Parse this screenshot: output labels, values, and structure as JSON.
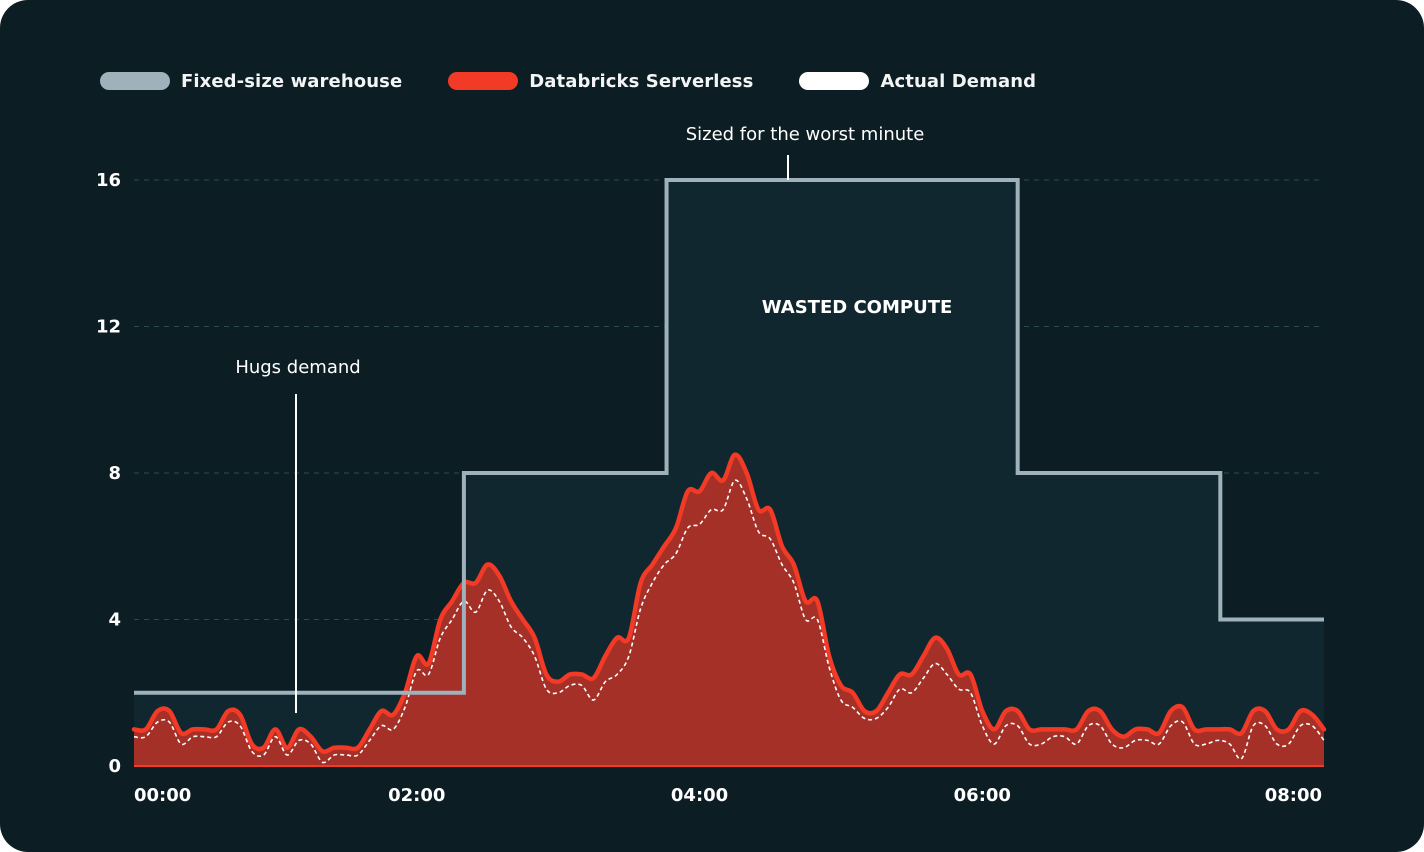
{
  "colors": {
    "background": "#0c1e24",
    "fixed": "#9fb2bb",
    "fixed_fill": "#11272f",
    "serverless": "#f23a26",
    "serverless_fill": "#a53027",
    "demand": "#ffffff",
    "grid": "#2d4a52"
  },
  "legend": [
    {
      "label": "Fixed-size warehouse",
      "color": "#9fb2bb"
    },
    {
      "label": "Databricks Serverless",
      "color": "#f23a26"
    },
    {
      "label": "Actual Demand",
      "color": "#ffffff"
    }
  ],
  "annotations": {
    "worst_minute": "Sized for the worst minute",
    "wasted": "WASTED COMPUTE",
    "hugs": "Hugs demand"
  },
  "chart_data": {
    "type": "area",
    "x_range": [
      "00:00",
      "08:25"
    ],
    "ylim": [
      0,
      16
    ],
    "grid": true,
    "y_ticks": [
      0,
      4,
      8,
      12,
      16
    ],
    "x_ticks": [
      "00:00",
      "02:00",
      "04:00",
      "06:00",
      "08:00"
    ],
    "legend_position": "top-left",
    "series": [
      {
        "name": "Fixed-size warehouse",
        "style": "step",
        "points": [
          {
            "x": "00:00",
            "y": 2
          },
          {
            "x": "02:20",
            "y": 8
          },
          {
            "x": "03:46",
            "y": 16
          },
          {
            "x": "06:15",
            "y": 8
          },
          {
            "x": "07:41",
            "y": 4
          },
          {
            "x": "08:25",
            "y": 4
          }
        ]
      },
      {
        "name": "Databricks Serverless",
        "style": "area",
        "points": [
          {
            "x": "00:00",
            "y": 1.0
          },
          {
            "x": "00:05",
            "y": 1.0
          },
          {
            "x": "00:10",
            "y": 1.5
          },
          {
            "x": "00:15",
            "y": 1.5
          },
          {
            "x": "00:20",
            "y": 0.9
          },
          {
            "x": "00:25",
            "y": 1.0
          },
          {
            "x": "00:30",
            "y": 1.0
          },
          {
            "x": "00:35",
            "y": 1.0
          },
          {
            "x": "00:40",
            "y": 1.5
          },
          {
            "x": "00:45",
            "y": 1.4
          },
          {
            "x": "00:50",
            "y": 0.6
          },
          {
            "x": "00:55",
            "y": 0.5
          },
          {
            "x": "01:00",
            "y": 1.0
          },
          {
            "x": "01:05",
            "y": 0.5
          },
          {
            "x": "01:10",
            "y": 1.0
          },
          {
            "x": "01:15",
            "y": 0.8
          },
          {
            "x": "01:20",
            "y": 0.4
          },
          {
            "x": "01:25",
            "y": 0.5
          },
          {
            "x": "01:30",
            "y": 0.5
          },
          {
            "x": "01:35",
            "y": 0.5
          },
          {
            "x": "01:40",
            "y": 1.0
          },
          {
            "x": "01:45",
            "y": 1.5
          },
          {
            "x": "01:50",
            "y": 1.4
          },
          {
            "x": "01:55",
            "y": 2.0
          },
          {
            "x": "02:00",
            "y": 3.0
          },
          {
            "x": "02:05",
            "y": 2.8
          },
          {
            "x": "02:10",
            "y": 4.0
          },
          {
            "x": "02:15",
            "y": 4.5
          },
          {
            "x": "02:20",
            "y": 5.0
          },
          {
            "x": "02:25",
            "y": 5.0
          },
          {
            "x": "02:30",
            "y": 5.5
          },
          {
            "x": "02:35",
            "y": 5.2
          },
          {
            "x": "02:40",
            "y": 4.5
          },
          {
            "x": "02:45",
            "y": 4.0
          },
          {
            "x": "02:50",
            "y": 3.5
          },
          {
            "x": "02:55",
            "y": 2.5
          },
          {
            "x": "03:00",
            "y": 2.3
          },
          {
            "x": "03:05",
            "y": 2.5
          },
          {
            "x": "03:10",
            "y": 2.5
          },
          {
            "x": "03:15",
            "y": 2.4
          },
          {
            "x": "03:20",
            "y": 3.0
          },
          {
            "x": "03:25",
            "y": 3.5
          },
          {
            "x": "03:30",
            "y": 3.5
          },
          {
            "x": "03:35",
            "y": 5.0
          },
          {
            "x": "03:40",
            "y": 5.5
          },
          {
            "x": "03:45",
            "y": 6.0
          },
          {
            "x": "03:50",
            "y": 6.5
          },
          {
            "x": "03:55",
            "y": 7.5
          },
          {
            "x": "04:00",
            "y": 7.5
          },
          {
            "x": "04:05",
            "y": 8.0
          },
          {
            "x": "04:10",
            "y": 7.8
          },
          {
            "x": "04:15",
            "y": 8.5
          },
          {
            "x": "04:20",
            "y": 8.0
          },
          {
            "x": "04:25",
            "y": 7.0
          },
          {
            "x": "04:30",
            "y": 7.0
          },
          {
            "x": "04:35",
            "y": 6.0
          },
          {
            "x": "04:40",
            "y": 5.5
          },
          {
            "x": "04:45",
            "y": 4.5
          },
          {
            "x": "04:50",
            "y": 4.5
          },
          {
            "x": "04:55",
            "y": 3.0
          },
          {
            "x": "05:00",
            "y": 2.2
          },
          {
            "x": "05:05",
            "y": 2.0
          },
          {
            "x": "05:10",
            "y": 1.5
          },
          {
            "x": "05:15",
            "y": 1.5
          },
          {
            "x": "05:20",
            "y": 2.0
          },
          {
            "x": "05:25",
            "y": 2.5
          },
          {
            "x": "05:30",
            "y": 2.5
          },
          {
            "x": "05:35",
            "y": 3.0
          },
          {
            "x": "05:40",
            "y": 3.5
          },
          {
            "x": "05:45",
            "y": 3.2
          },
          {
            "x": "05:50",
            "y": 2.5
          },
          {
            "x": "05:55",
            "y": 2.5
          },
          {
            "x": "06:00",
            "y": 1.5
          },
          {
            "x": "06:05",
            "y": 1.0
          },
          {
            "x": "06:10",
            "y": 1.5
          },
          {
            "x": "06:15",
            "y": 1.5
          },
          {
            "x": "06:20",
            "y": 1.0
          },
          {
            "x": "06:25",
            "y": 1.0
          },
          {
            "x": "06:30",
            "y": 1.0
          },
          {
            "x": "06:35",
            "y": 1.0
          },
          {
            "x": "06:40",
            "y": 1.0
          },
          {
            "x": "06:45",
            "y": 1.5
          },
          {
            "x": "06:50",
            "y": 1.5
          },
          {
            "x": "06:55",
            "y": 1.0
          },
          {
            "x": "07:00",
            "y": 0.8
          },
          {
            "x": "07:05",
            "y": 1.0
          },
          {
            "x": "07:10",
            "y": 1.0
          },
          {
            "x": "07:15",
            "y": 0.9
          },
          {
            "x": "07:20",
            "y": 1.5
          },
          {
            "x": "07:25",
            "y": 1.6
          },
          {
            "x": "07:30",
            "y": 1.0
          },
          {
            "x": "07:35",
            "y": 1.0
          },
          {
            "x": "07:40",
            "y": 1.0
          },
          {
            "x": "07:45",
            "y": 1.0
          },
          {
            "x": "07:50",
            "y": 0.9
          },
          {
            "x": "07:55",
            "y": 1.5
          },
          {
            "x": "08:00",
            "y": 1.5
          },
          {
            "x": "08:05",
            "y": 1.0
          },
          {
            "x": "08:10",
            "y": 1.0
          },
          {
            "x": "08:15",
            "y": 1.5
          },
          {
            "x": "08:20",
            "y": 1.4
          },
          {
            "x": "08:25",
            "y": 1.0
          }
        ]
      },
      {
        "name": "Actual Demand",
        "style": "dashed",
        "points": [
          {
            "x": "00:00",
            "y": 0.8
          },
          {
            "x": "00:05",
            "y": 0.8
          },
          {
            "x": "00:10",
            "y": 1.2
          },
          {
            "x": "00:15",
            "y": 1.2
          },
          {
            "x": "00:20",
            "y": 0.6
          },
          {
            "x": "00:25",
            "y": 0.8
          },
          {
            "x": "00:30",
            "y": 0.8
          },
          {
            "x": "00:35",
            "y": 0.8
          },
          {
            "x": "00:40",
            "y": 1.2
          },
          {
            "x": "00:45",
            "y": 1.1
          },
          {
            "x": "00:50",
            "y": 0.4
          },
          {
            "x": "00:55",
            "y": 0.3
          },
          {
            "x": "01:00",
            "y": 0.8
          },
          {
            "x": "01:05",
            "y": 0.3
          },
          {
            "x": "01:10",
            "y": 0.7
          },
          {
            "x": "01:15",
            "y": 0.6
          },
          {
            "x": "01:20",
            "y": 0.1
          },
          {
            "x": "01:25",
            "y": 0.3
          },
          {
            "x": "01:30",
            "y": 0.3
          },
          {
            "x": "01:35",
            "y": 0.3
          },
          {
            "x": "01:40",
            "y": 0.7
          },
          {
            "x": "01:45",
            "y": 1.1
          },
          {
            "x": "01:50",
            "y": 1.0
          },
          {
            "x": "01:55",
            "y": 1.6
          },
          {
            "x": "02:00",
            "y": 2.6
          },
          {
            "x": "02:05",
            "y": 2.5
          },
          {
            "x": "02:10",
            "y": 3.5
          },
          {
            "x": "02:15",
            "y": 4.0
          },
          {
            "x": "02:20",
            "y": 4.5
          },
          {
            "x": "02:25",
            "y": 4.2
          },
          {
            "x": "02:30",
            "y": 4.8
          },
          {
            "x": "02:35",
            "y": 4.5
          },
          {
            "x": "02:40",
            "y": 3.8
          },
          {
            "x": "02:45",
            "y": 3.5
          },
          {
            "x": "02:50",
            "y": 3.0
          },
          {
            "x": "02:55",
            "y": 2.1
          },
          {
            "x": "03:00",
            "y": 2.0
          },
          {
            "x": "03:05",
            "y": 2.2
          },
          {
            "x": "03:10",
            "y": 2.2
          },
          {
            "x": "03:15",
            "y": 1.8
          },
          {
            "x": "03:20",
            "y": 2.3
          },
          {
            "x": "03:25",
            "y": 2.5
          },
          {
            "x": "03:30",
            "y": 3.0
          },
          {
            "x": "03:35",
            "y": 4.3
          },
          {
            "x": "03:40",
            "y": 5.0
          },
          {
            "x": "03:45",
            "y": 5.5
          },
          {
            "x": "03:50",
            "y": 5.8
          },
          {
            "x": "03:55",
            "y": 6.5
          },
          {
            "x": "04:00",
            "y": 6.6
          },
          {
            "x": "04:05",
            "y": 7.0
          },
          {
            "x": "04:10",
            "y": 7.0
          },
          {
            "x": "04:15",
            "y": 7.8
          },
          {
            "x": "04:20",
            "y": 7.3
          },
          {
            "x": "04:25",
            "y": 6.4
          },
          {
            "x": "04:30",
            "y": 6.2
          },
          {
            "x": "04:35",
            "y": 5.5
          },
          {
            "x": "04:40",
            "y": 5.0
          },
          {
            "x": "04:45",
            "y": 4.0
          },
          {
            "x": "04:50",
            "y": 4.0
          },
          {
            "x": "04:55",
            "y": 2.7
          },
          {
            "x": "05:00",
            "y": 1.8
          },
          {
            "x": "05:05",
            "y": 1.6
          },
          {
            "x": "05:10",
            "y": 1.3
          },
          {
            "x": "05:15",
            "y": 1.3
          },
          {
            "x": "05:20",
            "y": 1.6
          },
          {
            "x": "05:25",
            "y": 2.1
          },
          {
            "x": "05:30",
            "y": 2.0
          },
          {
            "x": "05:35",
            "y": 2.4
          },
          {
            "x": "05:40",
            "y": 2.8
          },
          {
            "x": "05:45",
            "y": 2.5
          },
          {
            "x": "05:50",
            "y": 2.1
          },
          {
            "x": "05:55",
            "y": 2.0
          },
          {
            "x": "06:00",
            "y": 1.1
          },
          {
            "x": "06:05",
            "y": 0.6
          },
          {
            "x": "06:10",
            "y": 1.1
          },
          {
            "x": "06:15",
            "y": 1.1
          },
          {
            "x": "06:20",
            "y": 0.6
          },
          {
            "x": "06:25",
            "y": 0.6
          },
          {
            "x": "06:30",
            "y": 0.8
          },
          {
            "x": "06:35",
            "y": 0.8
          },
          {
            "x": "06:40",
            "y": 0.6
          },
          {
            "x": "06:45",
            "y": 1.1
          },
          {
            "x": "06:50",
            "y": 1.1
          },
          {
            "x": "06:55",
            "y": 0.6
          },
          {
            "x": "07:00",
            "y": 0.5
          },
          {
            "x": "07:05",
            "y": 0.7
          },
          {
            "x": "07:10",
            "y": 0.7
          },
          {
            "x": "07:15",
            "y": 0.6
          },
          {
            "x": "07:20",
            "y": 1.1
          },
          {
            "x": "07:25",
            "y": 1.2
          },
          {
            "x": "07:30",
            "y": 0.6
          },
          {
            "x": "07:35",
            "y": 0.6
          },
          {
            "x": "07:40",
            "y": 0.7
          },
          {
            "x": "07:45",
            "y": 0.6
          },
          {
            "x": "07:50",
            "y": 0.2
          },
          {
            "x": "07:55",
            "y": 1.1
          },
          {
            "x": "08:00",
            "y": 1.1
          },
          {
            "x": "08:05",
            "y": 0.6
          },
          {
            "x": "08:10",
            "y": 0.6
          },
          {
            "x": "08:15",
            "y": 1.1
          },
          {
            "x": "08:20",
            "y": 1.1
          },
          {
            "x": "08:25",
            "y": 0.7
          }
        ]
      }
    ]
  }
}
